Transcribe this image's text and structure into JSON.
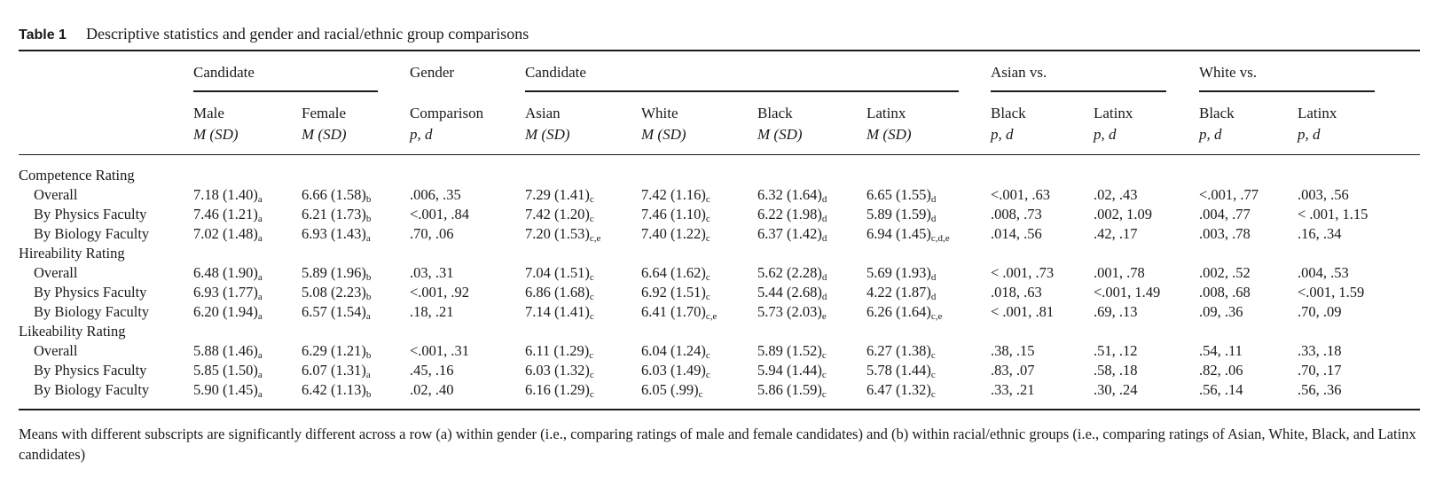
{
  "caption": {
    "label": "Table 1",
    "text": "Descriptive statistics and gender and racial/ethnic group comparisons"
  },
  "header": {
    "group_candidate_gender": "Candidate",
    "group_gender": "Gender",
    "group_candidate_race": "Candidate",
    "group_asian_vs": "Asian vs.",
    "group_white_vs": "White vs.",
    "columns": [
      {
        "top": "Male",
        "bottom": "M (SD)"
      },
      {
        "top": "Female",
        "bottom": "M (SD)"
      },
      {
        "top": "Comparison",
        "bottom": "p, d"
      },
      {
        "top": "Asian",
        "bottom": "M (SD)"
      },
      {
        "top": "White",
        "bottom": "M (SD)"
      },
      {
        "top": "Black",
        "bottom": "M (SD)"
      },
      {
        "top": "Latinx",
        "bottom": "M (SD)"
      },
      {
        "top": "Black",
        "bottom": "p, d"
      },
      {
        "top": "Latinx",
        "bottom": "p, d"
      },
      {
        "top": "Black",
        "bottom": "p, d"
      },
      {
        "top": "Latinx",
        "bottom": "p, d"
      }
    ]
  },
  "sections": [
    {
      "title": "Competence Rating",
      "rows": [
        {
          "label": "Overall",
          "cells": [
            [
              "7.18 (1.40)",
              "a"
            ],
            [
              "6.66 (1.58)",
              "b"
            ],
            [
              ".006, .35",
              ""
            ],
            [
              "7.29 (1.41)",
              "c"
            ],
            [
              "7.42 (1.16)",
              "c"
            ],
            [
              "6.32 (1.64)",
              "d"
            ],
            [
              "6.65 (1.55)",
              "d"
            ],
            [
              "<.001, .63",
              ""
            ],
            [
              ".02, .43",
              ""
            ],
            [
              "<.001, .77",
              ""
            ],
            [
              ".003, .56",
              ""
            ]
          ]
        },
        {
          "label": "By Physics Faculty",
          "cells": [
            [
              "7.46 (1.21)",
              "a"
            ],
            [
              "6.21 (1.73)",
              "b"
            ],
            [
              "<.001, .84",
              ""
            ],
            [
              "7.42 (1.20)",
              "c"
            ],
            [
              "7.46 (1.10)",
              "c"
            ],
            [
              "6.22 (1.98)",
              "d"
            ],
            [
              "5.89 (1.59)",
              "d"
            ],
            [
              ".008, .73",
              ""
            ],
            [
              ".002, 1.09",
              ""
            ],
            [
              ".004, .77",
              ""
            ],
            [
              "< .001, 1.15",
              ""
            ]
          ]
        },
        {
          "label": "By Biology Faculty",
          "cells": [
            [
              "7.02 (1.48)",
              "a"
            ],
            [
              "6.93 (1.43)",
              "a"
            ],
            [
              ".70, .06",
              ""
            ],
            [
              "7.20 (1.53)",
              "c,e"
            ],
            [
              "7.40 (1.22)",
              "c"
            ],
            [
              "6.37 (1.42)",
              "d"
            ],
            [
              "6.94 (1.45)",
              "c,d,e"
            ],
            [
              ".014, .56",
              ""
            ],
            [
              ".42, .17",
              ""
            ],
            [
              ".003, .78",
              ""
            ],
            [
              ".16, .34",
              ""
            ]
          ]
        }
      ]
    },
    {
      "title": "Hireability Rating",
      "rows": [
        {
          "label": "Overall",
          "cells": [
            [
              "6.48 (1.90)",
              "a"
            ],
            [
              "5.89 (1.96)",
              "b"
            ],
            [
              ".03, .31",
              ""
            ],
            [
              "7.04 (1.51)",
              "c"
            ],
            [
              "6.64 (1.62)",
              "c"
            ],
            [
              "5.62 (2.28)",
              "d"
            ],
            [
              "5.69 (1.93)",
              "d"
            ],
            [
              "< .001, .73",
              ""
            ],
            [
              ".001, .78",
              ""
            ],
            [
              ".002, .52",
              ""
            ],
            [
              ".004, .53",
              ""
            ]
          ]
        },
        {
          "label": "By Physics Faculty",
          "cells": [
            [
              "6.93 (1.77)",
              "a"
            ],
            [
              "5.08 (2.23)",
              "b"
            ],
            [
              "<.001, .92",
              ""
            ],
            [
              "6.86 (1.68)",
              "c"
            ],
            [
              "6.92 (1.51)",
              "c"
            ],
            [
              "5.44 (2.68)",
              "d"
            ],
            [
              "4.22 (1.87)",
              "d"
            ],
            [
              ".018, .63",
              ""
            ],
            [
              "<.001, 1.49",
              ""
            ],
            [
              ".008, .68",
              ""
            ],
            [
              "<.001, 1.59",
              ""
            ]
          ]
        },
        {
          "label": "By Biology Faculty",
          "cells": [
            [
              "6.20 (1.94)",
              "a"
            ],
            [
              "6.57 (1.54)",
              "a"
            ],
            [
              ".18, .21",
              ""
            ],
            [
              "7.14 (1.41)",
              "c"
            ],
            [
              "6.41 (1.70)",
              "c,e"
            ],
            [
              "5.73 (2.03)",
              "e"
            ],
            [
              "6.26 (1.64)",
              "c,e"
            ],
            [
              "< .001, .81",
              ""
            ],
            [
              ".69, .13",
              ""
            ],
            [
              ".09, .36",
              ""
            ],
            [
              ".70, .09",
              ""
            ]
          ]
        }
      ]
    },
    {
      "title": "Likeability Rating",
      "rows": [
        {
          "label": "Overall",
          "cells": [
            [
              "5.88 (1.46)",
              "a"
            ],
            [
              "6.29 (1.21)",
              "b"
            ],
            [
              "<.001, .31",
              ""
            ],
            [
              "6.11 (1.29)",
              "c"
            ],
            [
              "6.04 (1.24)",
              "c"
            ],
            [
              "5.89 (1.52)",
              "c"
            ],
            [
              "6.27 (1.38)",
              "c"
            ],
            [
              ".38, .15",
              ""
            ],
            [
              ".51, .12",
              ""
            ],
            [
              ".54, .11",
              ""
            ],
            [
              ".33, .18",
              ""
            ]
          ]
        },
        {
          "label": "By Physics Faculty",
          "cells": [
            [
              "5.85 (1.50)",
              "a"
            ],
            [
              "6.07 (1.31)",
              "a"
            ],
            [
              ".45, .16",
              ""
            ],
            [
              "6.03 (1.32)",
              "c"
            ],
            [
              "6.03 (1.49)",
              "c"
            ],
            [
              "5.94 (1.44)",
              "c"
            ],
            [
              "5.78 (1.44)",
              "c"
            ],
            [
              ".83, .07",
              ""
            ],
            [
              ".58, .18",
              ""
            ],
            [
              ".82, .06",
              ""
            ],
            [
              ".70, .17",
              ""
            ]
          ]
        },
        {
          "label": "By Biology Faculty",
          "cells": [
            [
              "5.90 (1.45)",
              "a"
            ],
            [
              "6.42 (1.13)",
              "b"
            ],
            [
              ".02, .40",
              ""
            ],
            [
              "6.16 (1.29)",
              "c"
            ],
            [
              "6.05 (.99)",
              "c"
            ],
            [
              "5.86 (1.59)",
              "c"
            ],
            [
              "6.47 (1.32)",
              "c"
            ],
            [
              ".33, .21",
              ""
            ],
            [
              ".30, .24",
              ""
            ],
            [
              ".56, .14",
              ""
            ],
            [
              ".56, .36",
              ""
            ]
          ]
        }
      ]
    }
  ],
  "note": "Means with different subscripts are significantly different across a row (a) within gender (i.e., comparing ratings of male and female candidates) and (b) within racial/ethnic groups (i.e., comparing ratings of Asian, White, Black, and Latinx candidates)"
}
